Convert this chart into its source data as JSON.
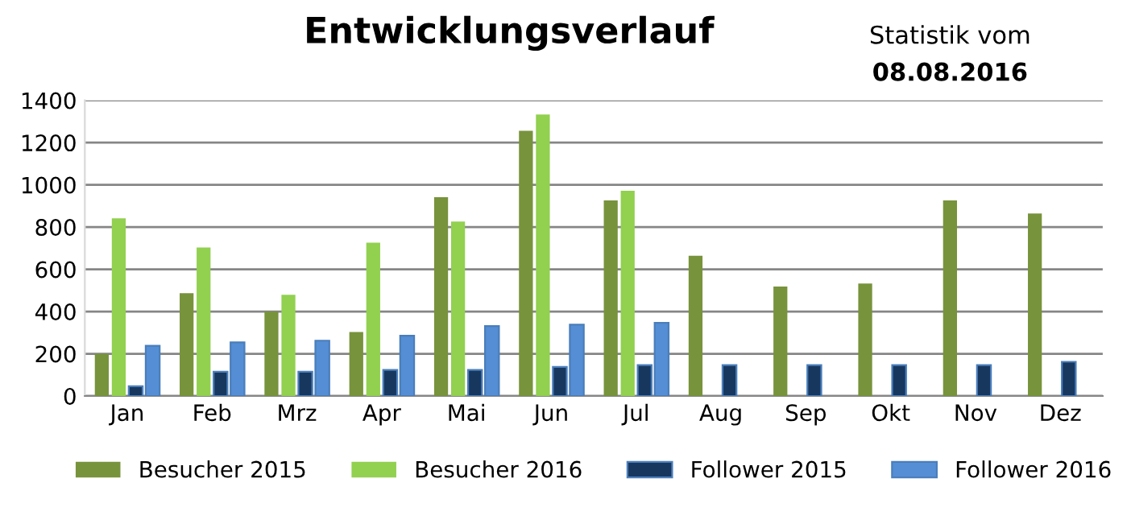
{
  "chart_data": {
    "type": "bar",
    "title": "Entwicklungsverlauf",
    "annotations": [
      "Statistik vom",
      "08.08.2016"
    ],
    "categories": [
      "Jan",
      "Feb",
      "Mrz",
      "Apr",
      "Mai",
      "Jun",
      "Jul",
      "Aug",
      "Sep",
      "Okt",
      "Nov",
      "Dez"
    ],
    "series": [
      {
        "name": "Besucher 2015",
        "color": "#77933c",
        "values": [
          200,
          487,
          400,
          303,
          941,
          1256,
          926,
          664,
          518,
          533,
          926,
          864
        ]
      },
      {
        "name": "Besucher 2016",
        "color": "#92d050",
        "values": [
          841,
          703,
          479,
          726,
          826,
          1333,
          972,
          null,
          null,
          null,
          null,
          null
        ]
      },
      {
        "name": "Follower 2015",
        "color": "#17375e",
        "values": [
          46,
          115,
          115,
          123,
          123,
          138,
          146,
          146,
          146,
          146,
          146,
          162
        ]
      },
      {
        "name": "Follower 2016",
        "color": "#558ed5",
        "values": [
          238,
          254,
          262,
          285,
          331,
          338,
          346,
          null,
          null,
          null,
          null,
          null
        ]
      }
    ],
    "ylim": [
      0,
      1400
    ],
    "yticks": [
      0,
      200,
      400,
      600,
      800,
      1000,
      1200,
      1400
    ],
    "grid": "y",
    "legend": "bottom"
  }
}
